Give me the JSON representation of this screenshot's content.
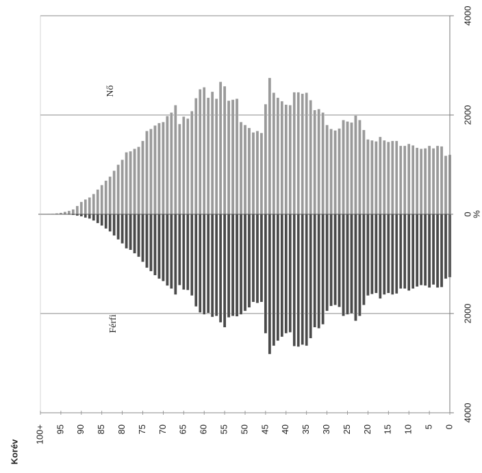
{
  "chart_data": {
    "type": "bar",
    "orientation": "population-pyramid, rotated 90 degrees counter-clockwise",
    "title": "",
    "xlabel": "Korév",
    "ylabel": "%",
    "categories": [
      0,
      1,
      2,
      3,
      4,
      5,
      6,
      7,
      8,
      9,
      10,
      11,
      12,
      13,
      14,
      15,
      16,
      17,
      18,
      19,
      20,
      21,
      22,
      23,
      24,
      25,
      26,
      27,
      28,
      29,
      30,
      31,
      32,
      33,
      34,
      35,
      36,
      37,
      38,
      39,
      40,
      41,
      42,
      43,
      44,
      45,
      46,
      47,
      48,
      49,
      50,
      51,
      52,
      53,
      54,
      55,
      56,
      57,
      58,
      59,
      60,
      61,
      62,
      63,
      64,
      65,
      66,
      67,
      68,
      69,
      70,
      71,
      72,
      73,
      74,
      75,
      76,
      77,
      78,
      79,
      80,
      81,
      82,
      83,
      84,
      85,
      86,
      87,
      88,
      89,
      90,
      91,
      92,
      93,
      94,
      95,
      96,
      97,
      98,
      99,
      100
    ],
    "category_tick_labels": [
      "0",
      "5",
      "10",
      "15",
      "20",
      "25",
      "30",
      "35",
      "40",
      "45",
      "50",
      "55",
      "60",
      "65",
      "70",
      "75",
      "80",
      "85",
      "90",
      "95",
      "100+"
    ],
    "value_tick_labels": [
      "4000",
      "2000",
      "0",
      "2000",
      "4000"
    ],
    "value_tick_label_extra": "%",
    "ylim": [
      -4000,
      4000
    ],
    "grid": true,
    "series": [
      {
        "name": "Nő",
        "color": "#9a9a9a",
        "values": [
          1200,
          1180,
          1370,
          1380,
          1330,
          1380,
          1330,
          1320,
          1340,
          1390,
          1420,
          1380,
          1380,
          1480,
          1480,
          1460,
          1490,
          1560,
          1470,
          1490,
          1510,
          1700,
          1900,
          1990,
          1850,
          1870,
          1900,
          1730,
          1690,
          1720,
          1800,
          2050,
          2120,
          2100,
          2300,
          2450,
          2430,
          2460,
          2460,
          2200,
          2210,
          2280,
          2350,
          2450,
          2750,
          2220,
          1640,
          1680,
          1650,
          1740,
          1800,
          1860,
          2330,
          2310,
          2290,
          2580,
          2670,
          2330,
          2470,
          2350,
          2560,
          2520,
          2340,
          2080,
          1930,
          1970,
          1820,
          2200,
          2050,
          1980,
          1860,
          1840,
          1790,
          1720,
          1680,
          1480,
          1360,
          1320,
          1270,
          1250,
          1100,
          1000,
          880,
          760,
          680,
          590,
          500,
          410,
          340,
          300,
          250,
          170,
          100,
          70,
          50,
          30,
          20,
          12,
          8,
          5,
          10
        ],
        "label_color": "#222222"
      },
      {
        "name": "Férfi",
        "color": "#4a4a4a",
        "values": [
          1270,
          1300,
          1470,
          1480,
          1420,
          1480,
          1440,
          1430,
          1460,
          1500,
          1540,
          1500,
          1500,
          1600,
          1620,
          1590,
          1620,
          1700,
          1590,
          1610,
          1640,
          1830,
          2050,
          2150,
          2000,
          2020,
          2050,
          1870,
          1830,
          1850,
          1950,
          2220,
          2300,
          2280,
          2500,
          2650,
          2630,
          2670,
          2660,
          2380,
          2400,
          2470,
          2550,
          2650,
          2820,
          2400,
          1770,
          1790,
          1770,
          1880,
          1950,
          2020,
          2060,
          2050,
          2080,
          2280,
          2180,
          2050,
          2070,
          1990,
          2020,
          1980,
          1860,
          1640,
          1530,
          1520,
          1430,
          1620,
          1500,
          1440,
          1350,
          1300,
          1230,
          1150,
          1080,
          960,
          860,
          790,
          720,
          690,
          590,
          510,
          430,
          350,
          290,
          230,
          180,
          130,
          90,
          70,
          45,
          30,
          18,
          12,
          8,
          5,
          3,
          2,
          1,
          1,
          2
        ],
        "label_color": "#222222"
      }
    ]
  }
}
